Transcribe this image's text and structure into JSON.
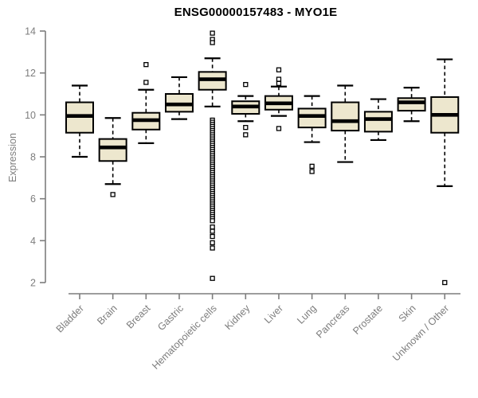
{
  "chart_data": {
    "type": "boxplot",
    "title": "ENSG00000157483 - MYO1E",
    "ylabel": "Expression",
    "xlabel": "",
    "ylim": [
      2,
      14
    ],
    "yticks": [
      2,
      4,
      6,
      8,
      10,
      12,
      14
    ],
    "grid": false,
    "legend": false,
    "categories": [
      "Bladder",
      "Brain",
      "Breast",
      "Gastric",
      "Hematopoietic cells",
      "Kidney",
      "Liver",
      "Lung",
      "Pancreas",
      "Prostate",
      "Skin",
      "Unknown / Other"
    ],
    "boxes": [
      {
        "category": "Bladder",
        "whisker_low": 8.0,
        "q1": 9.15,
        "median": 9.95,
        "q3": 10.6,
        "whisker_high": 11.4,
        "outliers": []
      },
      {
        "category": "Brain",
        "whisker_low": 6.7,
        "q1": 7.8,
        "median": 8.45,
        "q3": 8.85,
        "whisker_high": 9.85,
        "outliers": [
          6.2
        ]
      },
      {
        "category": "Breast",
        "whisker_low": 8.65,
        "q1": 9.3,
        "median": 9.75,
        "q3": 10.1,
        "whisker_high": 11.2,
        "outliers": [
          12.4,
          11.55
        ]
      },
      {
        "category": "Gastric",
        "whisker_low": 9.8,
        "q1": 10.15,
        "median": 10.5,
        "q3": 11.0,
        "whisker_high": 11.8,
        "outliers": []
      },
      {
        "category": "Hematopoietic cells",
        "whisker_low": 10.4,
        "q1": 11.2,
        "median": 11.7,
        "q3": 12.05,
        "whisker_high": 12.7,
        "outliers": [
          13.9,
          13.6,
          13.45,
          9.75,
          9.65,
          9.55,
          9.45,
          9.35,
          9.25,
          9.15,
          9.05,
          8.95,
          8.85,
          8.75,
          8.65,
          8.55,
          8.45,
          8.35,
          8.25,
          8.15,
          8.05,
          7.95,
          7.85,
          7.75,
          7.65,
          7.55,
          7.45,
          7.35,
          7.25,
          7.15,
          7.05,
          6.95,
          6.85,
          6.75,
          6.65,
          6.55,
          6.45,
          6.35,
          6.25,
          6.15,
          6.05,
          5.95,
          5.85,
          5.75,
          5.65,
          5.55,
          5.45,
          5.35,
          5.25,
          5.15,
          5.05,
          4.95,
          4.65,
          4.45,
          4.2,
          3.9,
          3.65,
          2.2
        ]
      },
      {
        "category": "Kidney",
        "whisker_low": 9.7,
        "q1": 10.05,
        "median": 10.4,
        "q3": 10.65,
        "whisker_high": 10.9,
        "outliers": [
          11.45,
          9.4,
          9.05
        ]
      },
      {
        "category": "Liver",
        "whisker_low": 9.95,
        "q1": 10.25,
        "median": 10.55,
        "q3": 10.9,
        "whisker_high": 11.35,
        "outliers": [
          12.15,
          11.7,
          11.5,
          9.35
        ]
      },
      {
        "category": "Lung",
        "whisker_low": 8.7,
        "q1": 9.4,
        "median": 9.95,
        "q3": 10.3,
        "whisker_high": 10.9,
        "outliers": [
          7.55,
          7.3
        ]
      },
      {
        "category": "Pancreas",
        "whisker_low": 7.75,
        "q1": 9.25,
        "median": 9.7,
        "q3": 10.6,
        "whisker_high": 11.4,
        "outliers": []
      },
      {
        "category": "Prostate",
        "whisker_low": 8.8,
        "q1": 9.2,
        "median": 9.8,
        "q3": 10.15,
        "whisker_high": 10.75,
        "outliers": []
      },
      {
        "category": "Skin",
        "whisker_low": 9.7,
        "q1": 10.2,
        "median": 10.6,
        "q3": 10.8,
        "whisker_high": 11.3,
        "outliers": []
      },
      {
        "category": "Unknown / Other",
        "whisker_low": 6.6,
        "q1": 9.15,
        "median": 10.0,
        "q3": 10.85,
        "whisker_high": 12.65,
        "outliers": [
          2.0
        ]
      }
    ],
    "colors": {
      "background": "#ffffff",
      "box_fill": "#ede7ce",
      "box_stroke": "#000000",
      "median": "#000000",
      "whisker": "#000000",
      "outlier_stroke": "#000000",
      "outlier_fill": "#ffffff",
      "axis": "#7d7d7d",
      "tick_label": "#7d7d7d",
      "title": "#000000"
    }
  }
}
